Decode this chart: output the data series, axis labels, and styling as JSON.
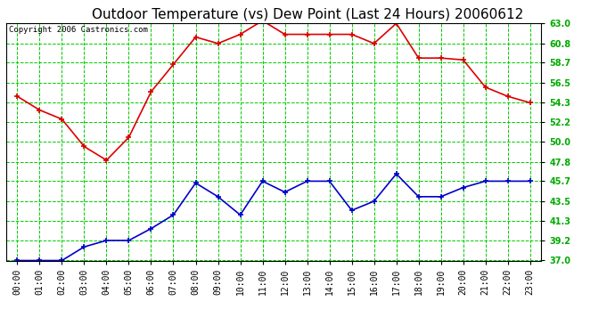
{
  "title": "Outdoor Temperature (vs) Dew Point (Last 24 Hours) 20060612",
  "copyright": "Copyright 2006 Castronics.com",
  "x_labels": [
    "00:00",
    "01:00",
    "02:00",
    "03:00",
    "04:00",
    "05:00",
    "06:00",
    "07:00",
    "08:00",
    "09:00",
    "10:00",
    "11:00",
    "12:00",
    "13:00",
    "14:00",
    "15:00",
    "16:00",
    "17:00",
    "18:00",
    "19:00",
    "20:00",
    "21:00",
    "22:00",
    "23:00"
  ],
  "temp_data": [
    55.0,
    53.5,
    52.5,
    49.5,
    48.0,
    50.5,
    55.5,
    58.5,
    61.5,
    60.8,
    61.8,
    63.3,
    61.8,
    61.8,
    61.8,
    61.8,
    60.8,
    63.0,
    59.2,
    59.2,
    59.0,
    56.0,
    55.0,
    54.3
  ],
  "dew_data": [
    37.0,
    37.0,
    37.0,
    38.5,
    39.2,
    39.2,
    40.5,
    42.0,
    45.5,
    44.0,
    42.0,
    45.7,
    44.5,
    45.7,
    45.7,
    42.5,
    43.5,
    46.5,
    44.0,
    44.0,
    45.0,
    45.7,
    45.7,
    45.7
  ],
  "temp_color": "#dd0000",
  "dew_color": "#0000cc",
  "bg_color": "#ffffff",
  "plot_bg_color": "#ffffff",
  "grid_color": "#00cc00",
  "ylim": [
    37.0,
    63.0
  ],
  "yticks": [
    37.0,
    39.2,
    41.3,
    43.5,
    45.7,
    47.8,
    50.0,
    52.2,
    54.3,
    56.5,
    58.7,
    60.8,
    63.0
  ],
  "title_fontsize": 11,
  "copyright_fontsize": 6.5,
  "tick_fontsize": 7,
  "marker": "+",
  "markersize": 5,
  "linewidth": 1.2
}
